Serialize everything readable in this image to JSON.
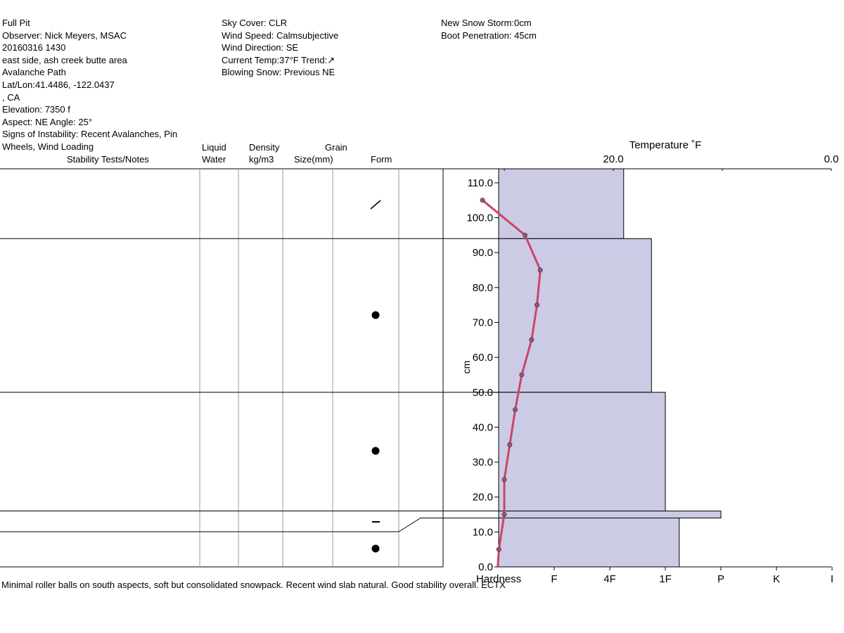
{
  "header": {
    "col1": [
      "Full Pit",
      "Observer: Nick Meyers, MSAC",
      "20160316 1430",
      "east side, ash creek butte area",
      "Avalanche Path",
      "Lat/Lon:41.4486, -122.0437",
      ", CA",
      "Elevation: 7350 f",
      "Aspect: NE Angle: 25°",
      "Signs of Instability: Recent Avalanches, Pin",
      "Wheels, Wind Loading"
    ],
    "col2": [
      "Sky Cover: CLR",
      "Wind Speed: Calmsubjective",
      "Wind Direction: SE",
      "Current Temp:37°F Trend:↗",
      "Blowing Snow: Previous NE"
    ],
    "col3": [
      "New Snow Storm:0cm",
      "Boot Penetration: 45cm"
    ]
  },
  "table_headers": {
    "stability": "Stability Tests/Notes",
    "liquid1": "Liquid",
    "liquid2": "Water",
    "density1": "Density",
    "density2": "kg/m3",
    "grain1": "Grain",
    "grain2": "Size(mm)",
    "form": "Form"
  },
  "notes": "Minimal roller balls on south aspects, soft but consolidated snowpack. Recent wind slab natural. Good stability overall. ECTX",
  "colors": {
    "hardness_fill": "#cbcbe6",
    "temp_line": "#cc4466",
    "temp_marker": "#8a5a80"
  },
  "chart_data": {
    "type": "line",
    "ylabel": "cm",
    "ylim": [
      0,
      114
    ],
    "y_ticks": [
      "0.0",
      "10.0",
      "20.0",
      "30.0",
      "40.0",
      "50.0",
      "60.0",
      "70.0",
      "80.0",
      "90.0",
      "100.0",
      "110.0"
    ],
    "temperature": {
      "label": "Temperature ˚F",
      "tick_labels": [
        "20.0",
        "0.0"
      ],
      "depth_cm": [
        105,
        95,
        85,
        75,
        65,
        55,
        45,
        35,
        25,
        15,
        5,
        0
      ],
      "temp_f": [
        32.0,
        28.1,
        26.7,
        27.0,
        27.5,
        28.4,
        29.0,
        29.5,
        30.0,
        30.0,
        30.5,
        30.6
      ]
    },
    "hardness": {
      "label": "Hardness",
      "scale": [
        "F",
        "4F",
        "1F",
        "P",
        "K",
        "I"
      ],
      "layers": [
        {
          "bottom": 94,
          "top": 114,
          "hardness": 2.25,
          "form": "slash"
        },
        {
          "bottom": 50,
          "top": 94,
          "hardness": 2.75,
          "form": "dot"
        },
        {
          "bottom": 16,
          "top": 50,
          "hardness": 3.0,
          "form": "dot"
        },
        {
          "bottom": 14,
          "top": 16,
          "hardness": 4.0,
          "form": "dash"
        },
        {
          "bottom": 0,
          "top": 14,
          "hardness": 3.25,
          "form": "dot"
        }
      ]
    }
  }
}
